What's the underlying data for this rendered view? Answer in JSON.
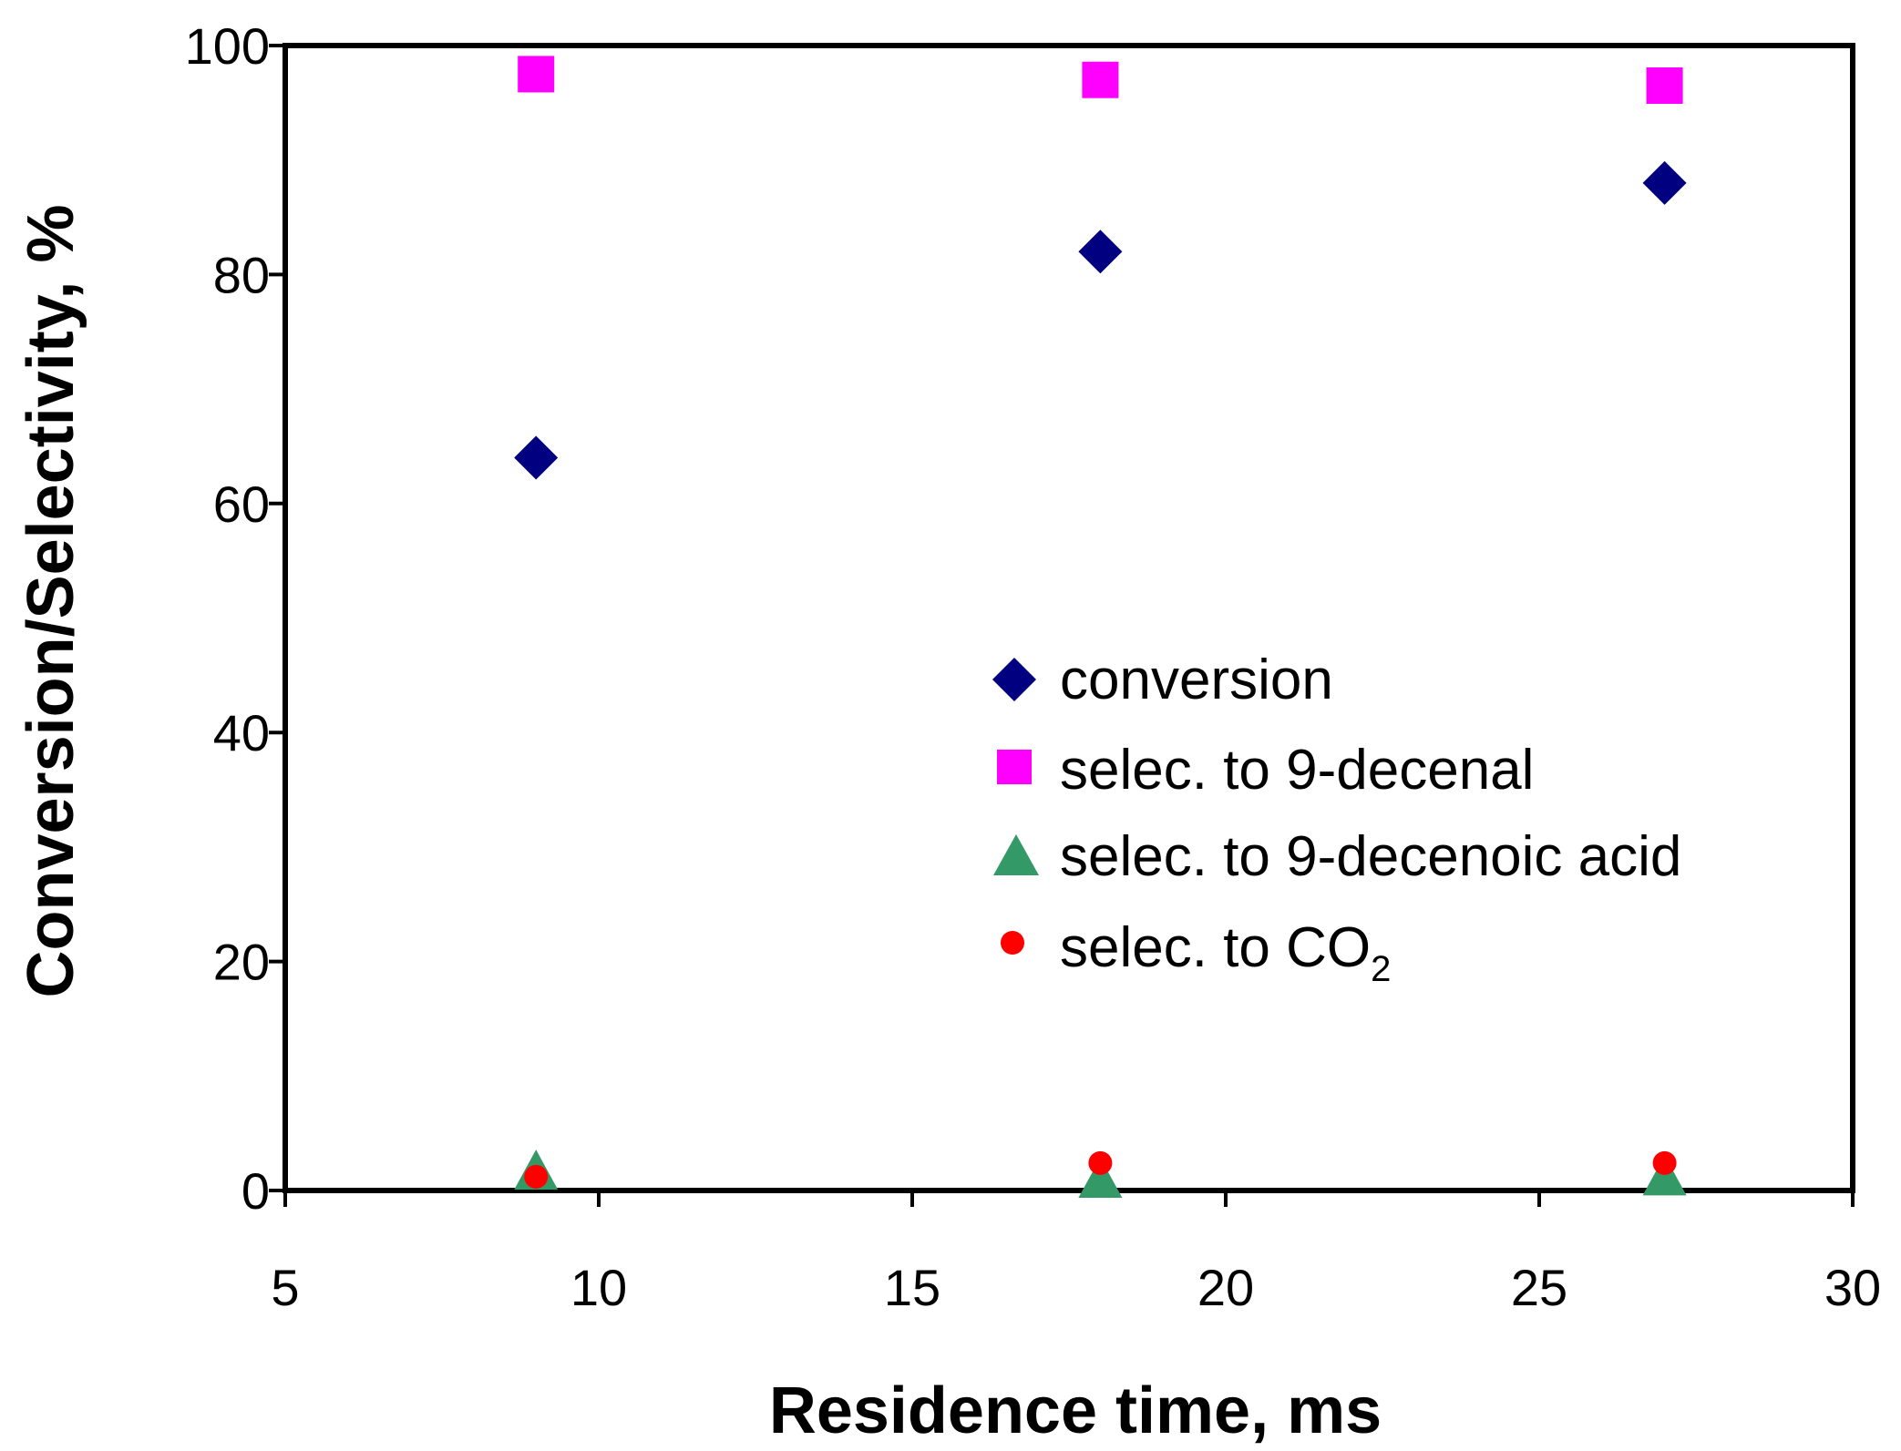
{
  "chart_data": {
    "type": "scatter",
    "title": "",
    "xlabel": "Residence time, ms",
    "ylabel": "Conversion/Selectivity, %",
    "xlim": [
      5,
      30
    ],
    "ylim": [
      0,
      100
    ],
    "xticks": [
      5,
      10,
      15,
      20,
      25,
      30
    ],
    "yticks": [
      0,
      20,
      40,
      60,
      80,
      100
    ],
    "xtick_labels": [
      "5",
      "10",
      "15",
      "20",
      "25",
      "30"
    ],
    "ytick_labels": [
      "0",
      "20",
      "40",
      "60",
      "80",
      "100"
    ],
    "grid": false,
    "legend_position": "center-right",
    "series": [
      {
        "name": "conversion",
        "label": "conversion",
        "marker": "diamond",
        "color": "#000080",
        "x": [
          9,
          18,
          27
        ],
        "y": [
          64,
          82,
          88
        ]
      },
      {
        "name": "selec. to 9-decenal",
        "label": "selec. to 9-decenal",
        "marker": "square",
        "color": "#ff00ff",
        "x": [
          9,
          18,
          27
        ],
        "y": [
          97.5,
          97,
          96.5
        ]
      },
      {
        "name": "selec. to 9-decenoic acid",
        "label": "selec. to 9-decenoic acid",
        "marker": "triangle",
        "color": "#339966",
        "x": [
          9,
          18,
          27
        ],
        "y": [
          1.5,
          0.8,
          1.0
        ]
      },
      {
        "name": "selec. to CO2",
        "label": "selec. to CO",
        "label_sub": "2",
        "marker": "circle",
        "color": "#ff0000",
        "x": [
          9,
          18,
          27
        ],
        "y": [
          1.2,
          2.4,
          2.4
        ]
      }
    ]
  }
}
